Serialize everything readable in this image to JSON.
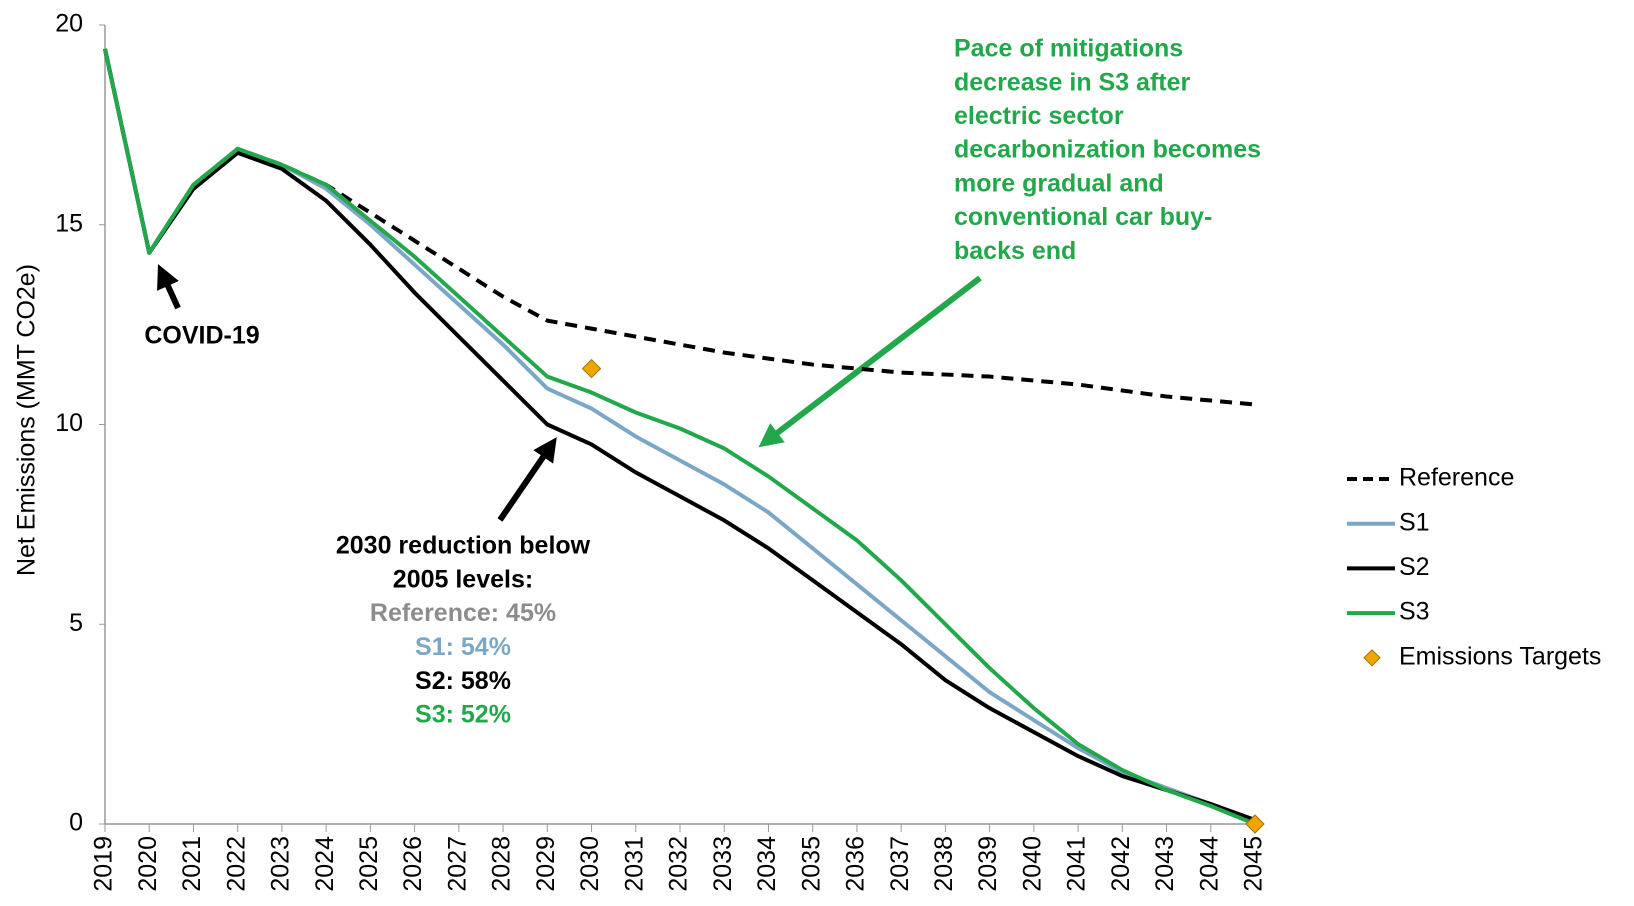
{
  "chart_data": {
    "type": "line",
    "y_label": "Net Emissions (MMT CO2e)",
    "x": [
      2019,
      2020,
      2021,
      2022,
      2023,
      2024,
      2025,
      2026,
      2027,
      2028,
      2029,
      2030,
      2031,
      2032,
      2033,
      2034,
      2035,
      2036,
      2037,
      2038,
      2039,
      2040,
      2041,
      2042,
      2043,
      2044,
      2045
    ],
    "xlim": [
      2019,
      2045
    ],
    "xticks": [
      2019,
      2020,
      2021,
      2022,
      2023,
      2024,
      2025,
      2026,
      2027,
      2028,
      2029,
      2030,
      2031,
      2032,
      2033,
      2034,
      2035,
      2036,
      2037,
      2038,
      2039,
      2040,
      2041,
      2042,
      2043,
      2044,
      2045
    ],
    "ylim": [
      0,
      20
    ],
    "yticks": [
      0,
      5,
      10,
      15,
      20
    ],
    "legend": "right",
    "series": [
      {
        "name": "Reference",
        "color": "#000000",
        "dash": true,
        "values": [
          19.4,
          14.3,
          16.0,
          16.9,
          16.5,
          16.0,
          15.3,
          14.6,
          13.9,
          13.2,
          12.6,
          12.4,
          12.2,
          12.0,
          11.8,
          11.65,
          11.5,
          11.4,
          11.3,
          11.25,
          11.2,
          11.1,
          11.0,
          10.85,
          10.7,
          10.6,
          10.5
        ]
      },
      {
        "name": "S1",
        "color": "#7ba7c7",
        "values": [
          19.4,
          14.3,
          16.0,
          16.9,
          16.5,
          15.9,
          15.0,
          14.0,
          13.0,
          12.0,
          10.9,
          10.4,
          9.7,
          9.1,
          8.5,
          7.8,
          6.9,
          6.0,
          5.1,
          4.2,
          3.3,
          2.6,
          1.9,
          1.3,
          0.9,
          0.5,
          0.1
        ]
      },
      {
        "name": "S2",
        "color": "#000000",
        "values": [
          19.4,
          14.3,
          15.9,
          16.8,
          16.4,
          15.6,
          14.5,
          13.3,
          12.2,
          11.1,
          10.0,
          9.5,
          8.8,
          8.2,
          7.6,
          6.9,
          6.1,
          5.3,
          4.5,
          3.6,
          2.9,
          2.3,
          1.7,
          1.2,
          0.85,
          0.5,
          0.1
        ]
      },
      {
        "name": "S3",
        "color": "#22a84a",
        "values": [
          19.4,
          14.3,
          16.0,
          16.9,
          16.5,
          16.0,
          15.1,
          14.2,
          13.2,
          12.2,
          11.2,
          10.8,
          10.3,
          9.9,
          9.4,
          8.7,
          7.9,
          7.1,
          6.1,
          5.0,
          3.9,
          2.9,
          2.0,
          1.35,
          0.85,
          0.45,
          0.0
        ]
      },
      {
        "name": "Emissions Targets",
        "color": "#f0a500",
        "marker": "diamond",
        "values": [
          null,
          null,
          null,
          null,
          null,
          null,
          null,
          null,
          null,
          null,
          null,
          11.4,
          null,
          null,
          null,
          null,
          null,
          null,
          null,
          null,
          null,
          null,
          null,
          null,
          null,
          null,
          0.0
        ]
      }
    ],
    "annotations": [
      {
        "lines": [
          "COVID-19"
        ],
        "colors": [
          "#000000"
        ]
      },
      {
        "lines": [
          "2030 reduction below",
          "2005 levels:",
          "Reference: 45%",
          "S1: 54%",
          "S2: 58%",
          "S3: 52%"
        ],
        "colors": [
          "#000000",
          "#000000",
          "#8c8c8c",
          "#7ba7c7",
          "#000000",
          "#22a84a"
        ]
      },
      {
        "lines": [
          "Pace of mitigations",
          "decrease in S3 after",
          "electric sector",
          "decarbonization becomes",
          "more gradual and",
          "conventional car buy-",
          "backs end"
        ],
        "colors": [
          "#22a84a",
          "#22a84a",
          "#22a84a",
          "#22a84a",
          "#22a84a",
          "#22a84a",
          "#22a84a"
        ]
      }
    ]
  }
}
